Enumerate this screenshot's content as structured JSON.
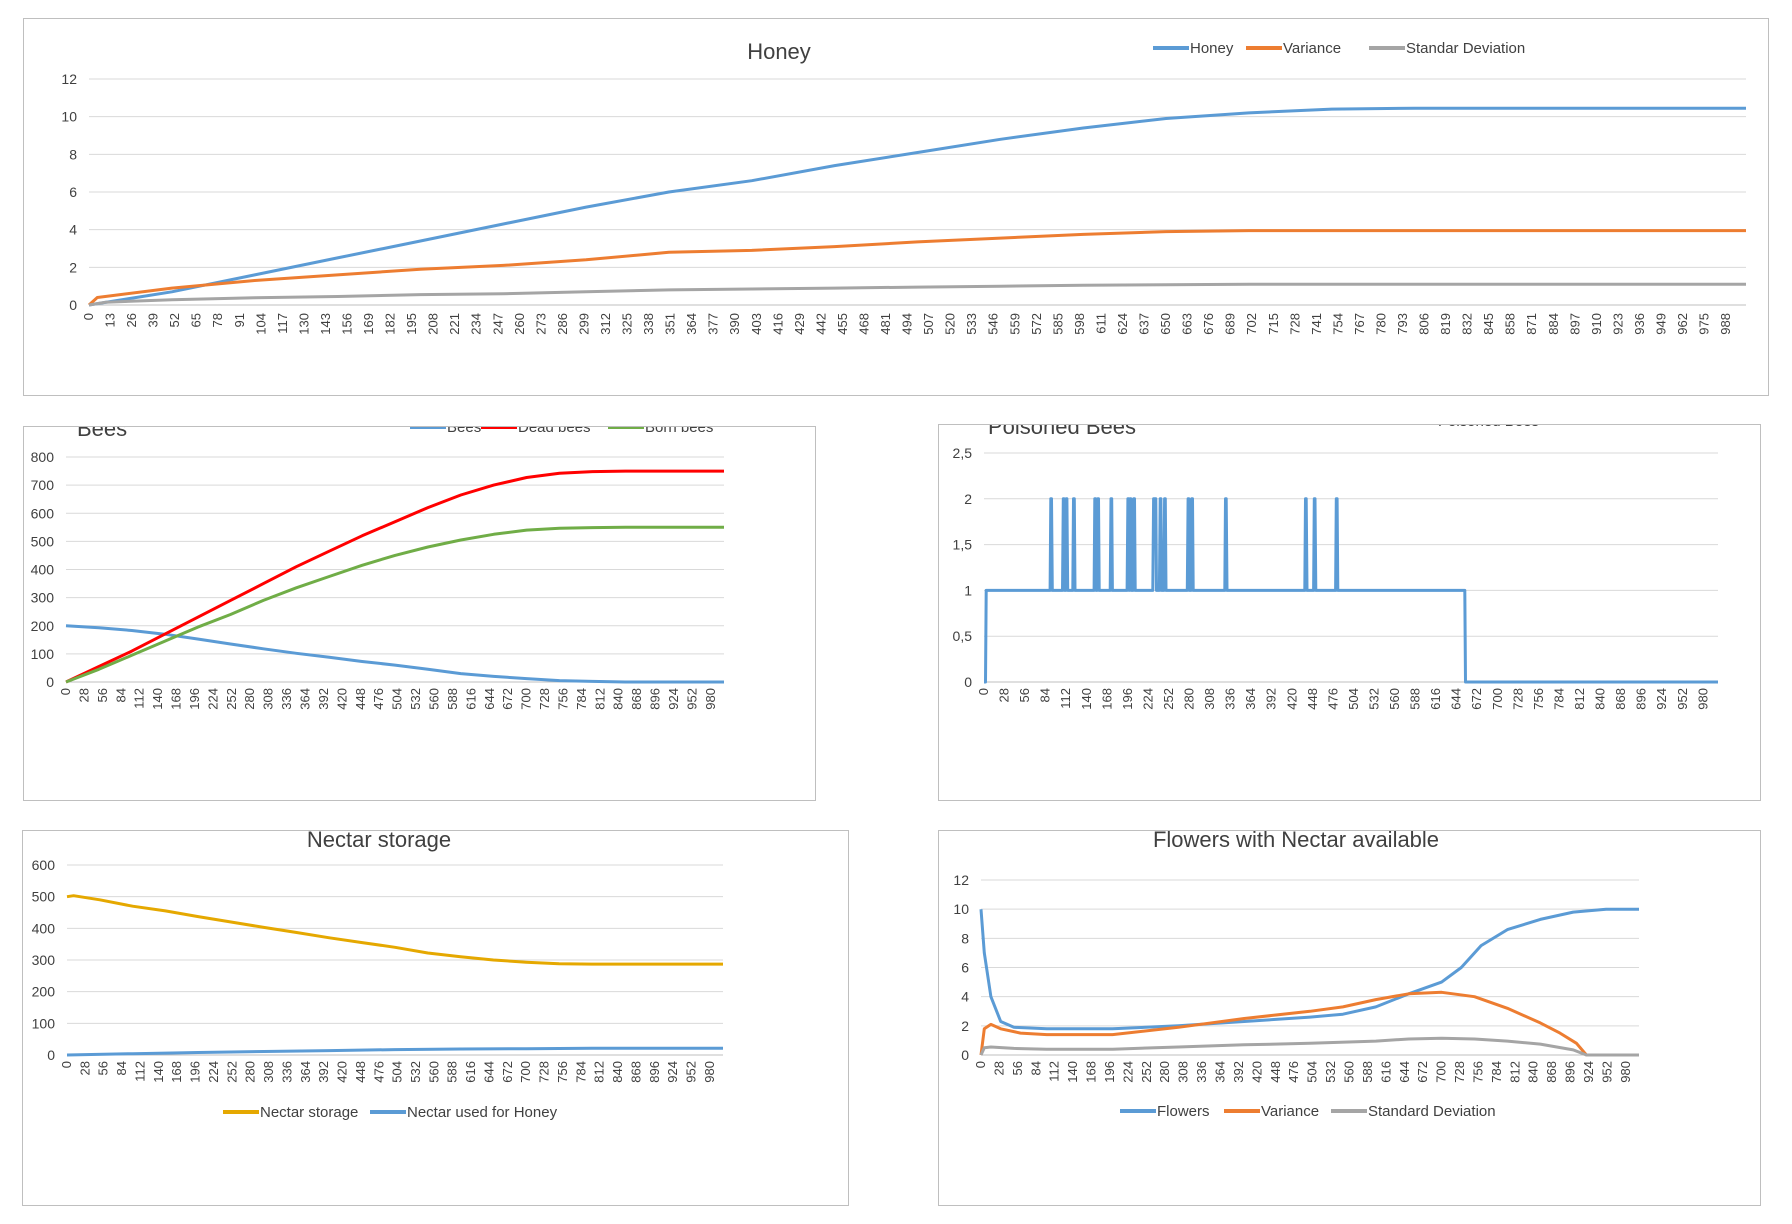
{
  "chart_data": [
    {
      "id": "honey",
      "type": "line",
      "title": "Honey",
      "xlabel": "",
      "ylabel": "",
      "x_start": 0,
      "x_end": 1000,
      "x_tick_step": 13,
      "ylim": [
        0,
        12
      ],
      "y_ticks": [
        0,
        2,
        4,
        6,
        8,
        10,
        12
      ],
      "grid": true,
      "legend_position": "top-right",
      "series": [
        {
          "name": "Honey",
          "color": "#5b9bd5",
          "x": [
            0,
            50,
            100,
            150,
            200,
            250,
            300,
            350,
            400,
            450,
            500,
            550,
            600,
            650,
            700,
            750,
            800,
            850,
            900,
            950,
            1000
          ],
          "y": [
            0,
            0.7,
            1.6,
            2.5,
            3.4,
            4.3,
            5.2,
            6.0,
            6.6,
            7.4,
            8.1,
            8.8,
            9.4,
            9.9,
            10.2,
            10.4,
            10.45,
            10.45,
            10.45,
            10.45,
            10.45
          ]
        },
        {
          "name": "Variance",
          "color": "#ed7d31",
          "x": [
            0,
            5,
            50,
            100,
            150,
            200,
            250,
            300,
            350,
            400,
            450,
            500,
            550,
            600,
            650,
            700,
            750,
            800,
            850,
            900,
            1000
          ],
          "y": [
            0,
            0.4,
            0.9,
            1.3,
            1.6,
            1.9,
            2.1,
            2.4,
            2.8,
            2.9,
            3.1,
            3.35,
            3.55,
            3.75,
            3.9,
            3.95,
            3.95,
            3.95,
            3.95,
            3.95,
            3.95
          ]
        },
        {
          "name": "Standar Deviation",
          "color": "#a5a5a5",
          "x": [
            0,
            10,
            50,
            100,
            150,
            200,
            250,
            300,
            350,
            400,
            450,
            500,
            550,
            600,
            650,
            700,
            750,
            800,
            1000
          ],
          "y": [
            0,
            0.15,
            0.28,
            0.38,
            0.45,
            0.55,
            0.6,
            0.7,
            0.8,
            0.85,
            0.9,
            0.95,
            1.0,
            1.05,
            1.08,
            1.1,
            1.1,
            1.1,
            1.1
          ]
        }
      ]
    },
    {
      "id": "bees",
      "type": "line",
      "title": "Bees",
      "xlabel": "",
      "ylabel": "",
      "x_start": 0,
      "x_end": 1000,
      "x_tick_step": 28,
      "ylim": [
        0,
        800
      ],
      "y_ticks": [
        0,
        100,
        200,
        300,
        400,
        500,
        600,
        700,
        800
      ],
      "grid": true,
      "legend_position": "top-right",
      "series": [
        {
          "name": "Bees",
          "color": "#5b9bd5",
          "x": [
            0,
            50,
            100,
            150,
            200,
            250,
            300,
            350,
            400,
            450,
            500,
            550,
            600,
            650,
            700,
            750,
            800,
            850,
            1000
          ],
          "y": [
            200,
            193,
            183,
            170,
            153,
            135,
            118,
            102,
            88,
            73,
            60,
            45,
            30,
            20,
            12,
            5,
            2,
            0,
            0
          ]
        },
        {
          "name": "Dead bees",
          "color": "#ff0000",
          "x": [
            0,
            50,
            100,
            150,
            200,
            250,
            300,
            350,
            400,
            450,
            500,
            550,
            600,
            650,
            700,
            750,
            800,
            850,
            900,
            1000
          ],
          "y": [
            0,
            55,
            110,
            170,
            230,
            290,
            350,
            410,
            465,
            520,
            570,
            620,
            665,
            700,
            727,
            742,
            748,
            750,
            750,
            750
          ]
        },
        {
          "name": "Born bees",
          "color": "#70ad47",
          "x": [
            0,
            50,
            100,
            150,
            200,
            250,
            300,
            350,
            400,
            450,
            500,
            550,
            600,
            650,
            700,
            750,
            800,
            850,
            1000
          ],
          "y": [
            0,
            45,
            95,
            145,
            195,
            240,
            290,
            335,
            375,
            415,
            450,
            480,
            505,
            525,
            540,
            547,
            549,
            550,
            550
          ]
        }
      ]
    },
    {
      "id": "poisoned",
      "type": "line",
      "title": "Poisoned Bees",
      "xlabel": "",
      "ylabel": "",
      "x_start": 0,
      "x_end": 1000,
      "x_tick_step": 28,
      "ylim": [
        0,
        2.5
      ],
      "y_ticks": [
        0,
        0.5,
        1,
        1.5,
        2,
        2.5
      ],
      "y_tick_labels": [
        "0",
        "0,5",
        "1",
        "1,5",
        "2",
        "2,5"
      ],
      "grid": true,
      "legend_position": "top-right",
      "series": [
        {
          "name": "Poisoned Bees",
          "color": "#5b9bd5",
          "baseline_runs": [
            [
              0,
              0,
              0
            ],
            [
              3,
              656,
              1
            ],
            [
              740,
              1000,
              0
            ]
          ],
          "spikes_to_2": [
            91,
            108,
            112,
            122,
            151,
            155,
            173,
            196,
            199,
            204,
            231,
            233,
            240,
            246,
            278,
            283,
            329,
            438,
            450,
            480
          ],
          "dips_to_0": [
            656,
            661,
            665,
            707,
            711,
            718,
            722,
            733
          ]
        }
      ]
    },
    {
      "id": "nectar",
      "type": "line",
      "title": "Nectar storage",
      "xlabel": "",
      "ylabel": "",
      "x_start": 0,
      "x_end": 1000,
      "x_tick_step": 28,
      "ylim": [
        0,
        600
      ],
      "y_ticks": [
        0,
        100,
        200,
        300,
        400,
        500,
        600
      ],
      "grid": true,
      "legend_position": "bottom",
      "series": [
        {
          "name": "Nectar storage",
          "color": "#e5a800",
          "x": [
            0,
            10,
            50,
            100,
            150,
            200,
            250,
            300,
            350,
            400,
            450,
            500,
            550,
            600,
            650,
            700,
            750,
            800,
            850,
            1000
          ],
          "y": [
            500,
            503,
            490,
            470,
            455,
            437,
            420,
            403,
            387,
            370,
            355,
            340,
            322,
            310,
            300,
            293,
            288,
            287,
            287,
            287
          ]
        },
        {
          "name": "Nectar used for Honey",
          "color": "#5b9bd5",
          "x": [
            0,
            100,
            200,
            300,
            400,
            500,
            600,
            700,
            800,
            1000
          ],
          "y": [
            0,
            4,
            8,
            11,
            14,
            17,
            19,
            20,
            21,
            21
          ]
        }
      ]
    },
    {
      "id": "flowers",
      "type": "line",
      "title": "Flowers with Nectar available",
      "xlabel": "",
      "ylabel": "",
      "x_start": 0,
      "x_end": 1000,
      "x_tick_step": 28,
      "ylim": [
        0,
        12
      ],
      "y_ticks": [
        0,
        2,
        4,
        6,
        8,
        10,
        12
      ],
      "grid": true,
      "legend_position": "bottom",
      "series": [
        {
          "name": "Flowers",
          "color": "#5b9bd5",
          "x": [
            0,
            5,
            15,
            30,
            50,
            100,
            200,
            300,
            400,
            500,
            550,
            600,
            650,
            700,
            730,
            760,
            800,
            850,
            900,
            950,
            1000
          ],
          "y": [
            10,
            7,
            4,
            2.3,
            1.9,
            1.8,
            1.8,
            2.0,
            2.3,
            2.6,
            2.8,
            3.3,
            4.2,
            5.0,
            6.0,
            7.5,
            8.6,
            9.3,
            9.8,
            10,
            10
          ]
        },
        {
          "name": "Variance",
          "color": "#ed7d31",
          "x": [
            0,
            5,
            15,
            30,
            60,
            100,
            200,
            300,
            400,
            500,
            550,
            600,
            650,
            700,
            750,
            800,
            850,
            880,
            905,
            920,
            1000
          ],
          "y": [
            0,
            1.8,
            2.1,
            1.8,
            1.5,
            1.4,
            1.4,
            1.9,
            2.5,
            3.0,
            3.3,
            3.8,
            4.2,
            4.3,
            4.0,
            3.2,
            2.2,
            1.5,
            0.8,
            0,
            0
          ]
        },
        {
          "name": "Standard Deviation",
          "color": "#a5a5a5",
          "x": [
            0,
            5,
            15,
            50,
            100,
            200,
            300,
            400,
            500,
            600,
            650,
            700,
            750,
            800,
            850,
            900,
            920,
            1000
          ],
          "y": [
            0,
            0.5,
            0.55,
            0.45,
            0.4,
            0.4,
            0.55,
            0.7,
            0.8,
            0.95,
            1.1,
            1.15,
            1.1,
            0.95,
            0.75,
            0.35,
            0,
            0
          ]
        }
      ]
    }
  ]
}
